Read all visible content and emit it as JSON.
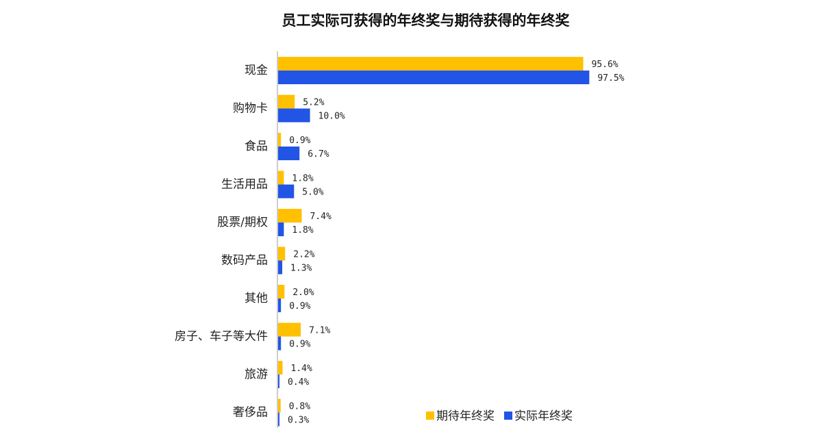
{
  "chart_data": {
    "type": "bar",
    "orientation": "horizontal",
    "title": "员工实际可获得的年终奖与期待获得的年终奖",
    "categories": [
      "现金",
      "购物卡",
      "食品",
      "生活用品",
      "股票/期权",
      "数码产品",
      "其他",
      "房子、车子等大件",
      "旅游",
      "奢侈品"
    ],
    "series": [
      {
        "name": "期待年终奖",
        "color": "#FFC000",
        "values": [
          95.6,
          5.2,
          0.9,
          1.8,
          7.4,
          2.2,
          2.0,
          7.1,
          1.4,
          0.8
        ],
        "labels": [
          "95.6%",
          "5.2%",
          "0.9%",
          "1.8%",
          "7.4%",
          "2.2%",
          "2.0%",
          "7.1%",
          "1.4%",
          "0.8%"
        ]
      },
      {
        "name": "实际年终奖",
        "color": "#2255E6",
        "values": [
          97.5,
          10.0,
          6.7,
          5.0,
          1.8,
          1.3,
          0.9,
          0.9,
          0.4,
          0.3
        ],
        "labels": [
          "97.5%",
          "10.0%",
          "6.7%",
          "5.0%",
          "1.8%",
          "1.3%",
          "0.9%",
          "0.9%",
          "0.4%",
          "0.3%"
        ]
      }
    ],
    "legend_position": "bottom-right",
    "grid": false
  }
}
